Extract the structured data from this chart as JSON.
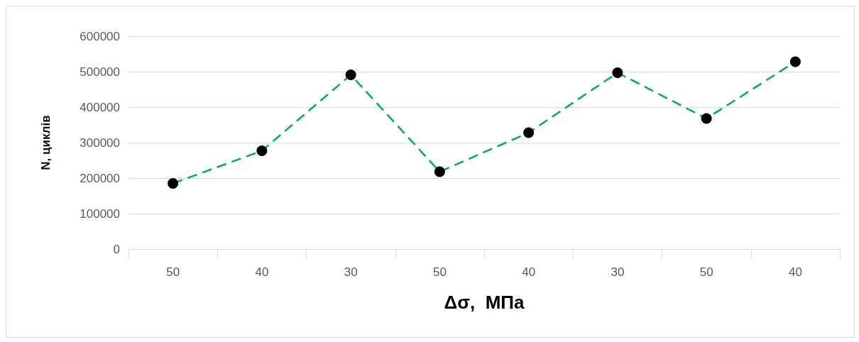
{
  "chart_data": {
    "type": "line",
    "xlabel": "Δσ,  МПа",
    "ylabel": "N, циклів",
    "categories": [
      "50",
      "40",
      "30",
      "50",
      "40",
      "30",
      "50",
      "40"
    ],
    "series": [
      {
        "color": "#00b050",
        "values": [
          185000,
          277000,
          491000,
          218000,
          328000,
          497000,
          368000,
          528000
        ]
      }
    ],
    "ylim": [
      0,
      600000
    ],
    "yticks": [
      0,
      100000,
      200000,
      300000,
      400000,
      500000,
      600000
    ],
    "grid": "y",
    "marker": "circle",
    "line_style": "dashed"
  }
}
